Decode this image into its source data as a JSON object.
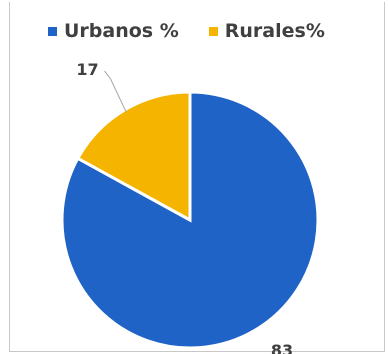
{
  "chart_data": {
    "type": "pie",
    "title": "",
    "series": [
      {
        "name": "Urbanos %",
        "value": 83,
        "color": "#1f63c7"
      },
      {
        "name": "Rurales%",
        "value": 17,
        "color": "#f5b400"
      }
    ],
    "legend": {
      "placement": "top"
    },
    "start_angle_deg": 0,
    "direction": "clockwise",
    "slice_border_color": "#ffffff"
  }
}
